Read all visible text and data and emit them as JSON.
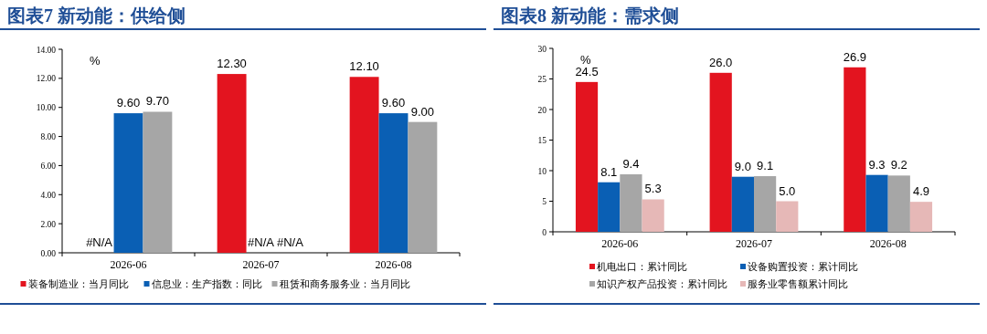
{
  "chart_data": [
    {
      "type": "bar",
      "title": "图表7 新动能：供给侧",
      "ylabel": "%",
      "categories": [
        "2026-06",
        "2026-07",
        "2026-08"
      ],
      "series": [
        {
          "name": "装备制造业：当月同比",
          "color": "#e3141f",
          "values": [
            null,
            12.3,
            12.1
          ],
          "value_labels": [
            "#N/A",
            "12.30",
            "12.10"
          ]
        },
        {
          "name": "信息业：生产指数：同比",
          "color": "#0a5fb4",
          "values": [
            9.6,
            null,
            9.6
          ],
          "value_labels": [
            "9.60",
            "#N/A",
            "9.60"
          ]
        },
        {
          "name": "租赁和商务服务业：当月同比",
          "color": "#a6a6a6",
          "values": [
            9.7,
            null,
            9.0
          ],
          "value_labels": [
            "9.70",
            "#N/A",
            "9.00"
          ]
        }
      ],
      "ylim": [
        0,
        14
      ],
      "yticks": [
        {
          "value": 0,
          "label": "0.00"
        },
        {
          "value": 2,
          "label": "2.00"
        },
        {
          "value": 4,
          "label": "4.00"
        },
        {
          "value": 6,
          "label": "6.00"
        },
        {
          "value": 8,
          "label": "8.00"
        },
        {
          "value": 10,
          "label": "10.00"
        },
        {
          "value": 12,
          "label": "12.00"
        },
        {
          "value": 14,
          "label": "14.00"
        }
      ],
      "legend": "bottom"
    },
    {
      "type": "bar",
      "title": "图表8 新动能：需求侧",
      "ylabel": "%",
      "categories": [
        "2026-06",
        "2026-07",
        "2026-08"
      ],
      "series": [
        {
          "name": "机电出口：累计同比",
          "color": "#e3141f",
          "values": [
            24.5,
            26.0,
            26.9
          ],
          "value_labels": [
            "24.5",
            "26.0",
            "26.9"
          ]
        },
        {
          "name": "设备购置投资：累计同比",
          "color": "#0a5fb4",
          "values": [
            8.1,
            9.0,
            9.3
          ],
          "value_labels": [
            "8.1",
            "9.0",
            "9.3"
          ]
        },
        {
          "name": "知识产权产品投资：累计同比",
          "color": "#a6a6a6",
          "values": [
            9.4,
            9.1,
            9.2
          ],
          "value_labels": [
            "9.4",
            "9.1",
            "9.2"
          ]
        },
        {
          "name": "服务业零售额累计同比",
          "color": "#e6b8b7",
          "values": [
            5.3,
            5.0,
            4.9
          ],
          "value_labels": [
            "5.3",
            "5.0",
            "4.9"
          ]
        }
      ],
      "ylim": [
        0,
        30
      ],
      "yticks": [
        0,
        5,
        10,
        15,
        20,
        25,
        30
      ],
      "legend": "bottom"
    }
  ]
}
